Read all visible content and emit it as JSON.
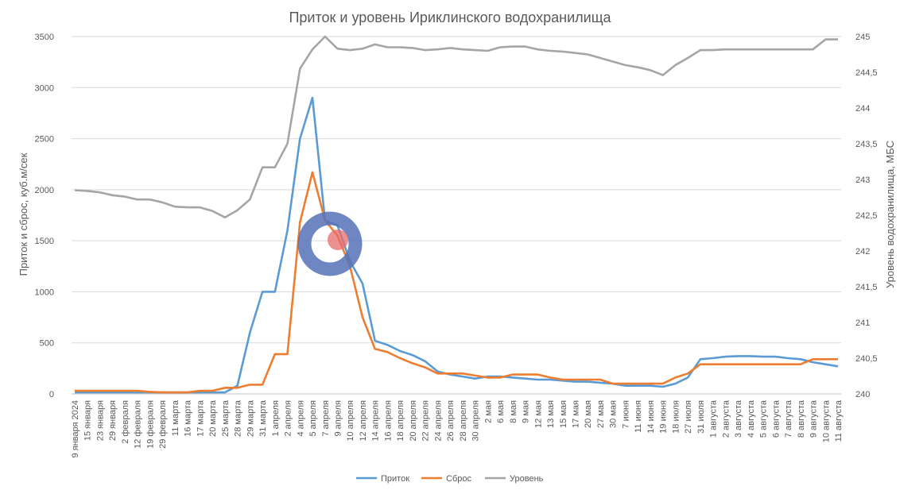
{
  "chart_data": {
    "type": "line",
    "title": "Приток и уровень Ириклинского водохранилища",
    "ylabel": "Приток и сброс, куб.м/сек",
    "y2label": "Уровень водохранилища, МБС",
    "ylim": [
      0,
      3500
    ],
    "y2lim": [
      240,
      245
    ],
    "yticks": [
      "0",
      "500",
      "1000",
      "1500",
      "2000",
      "2500",
      "3000",
      "3500"
    ],
    "y2ticks": [
      "240",
      "240,5",
      "241",
      "241,5",
      "242",
      "242,5",
      "243",
      "243,5",
      "244",
      "244,5",
      "245"
    ],
    "grid": true,
    "legend_position": "bottom",
    "colors": {
      "inflow": "#5b9bd5",
      "discharge": "#ed7d31",
      "level": "#a5a5a5"
    },
    "categories": [
      "9 января 2024",
      "15 января",
      "23 января",
      "29 января",
      "2 февраля",
      "12 февраля",
      "19 февраля",
      "29 февраля",
      "11 марта",
      "16 марта",
      "17 марта",
      "20 марта",
      "25 марта",
      "28 марта",
      "29 марта",
      "31 марта",
      "1 апреля",
      "2 апреля",
      "4 апреля",
      "5 апреля",
      "7 апреля",
      "9 апреля",
      "10 апреля",
      "12 апреля",
      "14 апреля",
      "16 апреля",
      "18 апреля",
      "20 апреля",
      "22 апреля",
      "24 апреля",
      "26 апреля",
      "28 апреля",
      "30 апреля",
      "2 мая",
      "6 мая",
      "8 мая",
      "9 мая",
      "12 мая",
      "13 мая",
      "15 мая",
      "17 мая",
      "20 мая",
      "27 мая",
      "30 мая",
      "7 июня",
      "11 июня",
      "14 июня",
      "19 июня",
      "18 июля",
      "27 июля",
      "31 июля",
      "1 августа",
      "2 августа",
      "3 августа",
      "4 августа",
      "5 августа",
      "6 августа",
      "7 августа",
      "8 августа",
      "9 августа",
      "10 августа",
      "11 августа"
    ],
    "series": [
      {
        "name": "Приток",
        "key": "inflow",
        "values": [
          15,
          15,
          15,
          15,
          15,
          15,
          15,
          15,
          15,
          15,
          15,
          15,
          15,
          80,
          600,
          1000,
          1000,
          1600,
          2500,
          2900,
          1700,
          1650,
          1300,
          1080,
          520,
          480,
          420,
          380,
          320,
          220,
          190,
          170,
          150,
          170,
          170,
          160,
          150,
          140,
          140,
          130,
          120,
          120,
          110,
          100,
          80,
          80,
          80,
          70,
          100,
          160,
          340,
          350,
          365,
          370,
          370,
          365,
          365,
          350,
          340,
          310,
          290,
          270
        ]
      },
      {
        "name": "Сброс",
        "key": "discharge",
        "values": [
          30,
          30,
          30,
          30,
          30,
          30,
          20,
          15,
          15,
          15,
          30,
          30,
          60,
          60,
          90,
          90,
          390,
          390,
          1680,
          2170,
          1700,
          1550,
          1250,
          750,
          440,
          410,
          350,
          300,
          260,
          200,
          200,
          200,
          180,
          160,
          160,
          190,
          190,
          190,
          160,
          140,
          140,
          140,
          140,
          100,
          100,
          100,
          100,
          100,
          160,
          200,
          290,
          290,
          290,
          290,
          290,
          290,
          290,
          290,
          290,
          340,
          340,
          340
        ]
      },
      {
        "name": "Уровень",
        "key": "level",
        "axis": "right",
        "values": [
          242.85,
          242.84,
          242.82,
          242.78,
          242.76,
          242.72,
          242.72,
          242.68,
          242.62,
          242.61,
          242.61,
          242.56,
          242.47,
          242.57,
          242.72,
          243.17,
          243.17,
          243.5,
          244.55,
          244.82,
          245.0,
          244.83,
          244.81,
          244.83,
          244.89,
          244.85,
          244.85,
          244.84,
          244.81,
          244.82,
          244.84,
          244.82,
          244.81,
          244.8,
          244.85,
          244.86,
          244.86,
          244.82,
          244.8,
          244.79,
          244.77,
          244.75,
          244.7,
          244.65,
          244.6,
          244.57,
          244.53,
          244.46,
          244.6,
          244.7,
          244.81,
          244.81,
          244.82,
          244.82,
          244.82,
          244.82,
          244.82,
          244.82,
          244.82,
          244.82,
          244.96,
          244.96
        ]
      }
    ]
  }
}
